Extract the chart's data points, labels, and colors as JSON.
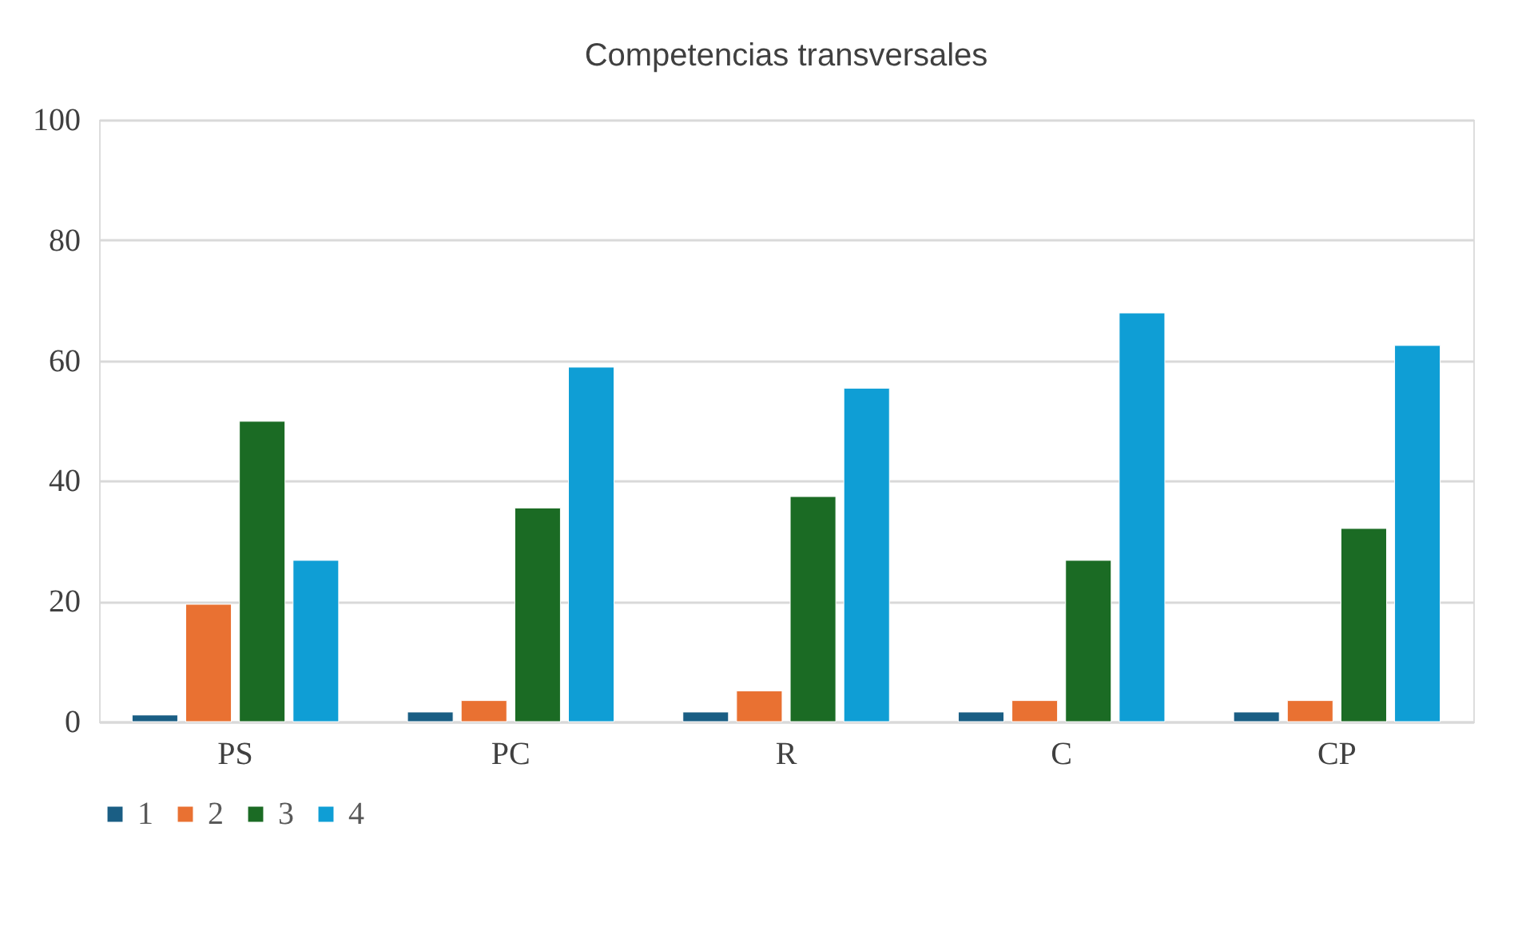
{
  "chart_data": {
    "type": "bar",
    "title": "Competencias transversales",
    "categories": [
      "PS",
      "PC",
      "R",
      "C",
      "CP"
    ],
    "series": [
      {
        "name": "1",
        "color": "#1a5e84",
        "values": [
          1.1,
          1.6,
          1.6,
          1.6,
          1.6
        ]
      },
      {
        "name": "2",
        "color": "#e97132",
        "values": [
          19.5,
          3.5,
          5.1,
          3.5,
          3.5
        ]
      },
      {
        "name": "3",
        "color": "#1b6b24",
        "values": [
          49.9,
          35.5,
          37.4,
          26.8,
          32.1
        ]
      },
      {
        "name": "4",
        "color": "#0f9ed5",
        "values": [
          26.8,
          58.9,
          55.4,
          67.9,
          62.5
        ]
      }
    ],
    "ylim": [
      0,
      100
    ],
    "yticks": [
      0,
      20,
      40,
      60,
      80,
      100
    ],
    "grid": "y",
    "legend": "bottom"
  }
}
